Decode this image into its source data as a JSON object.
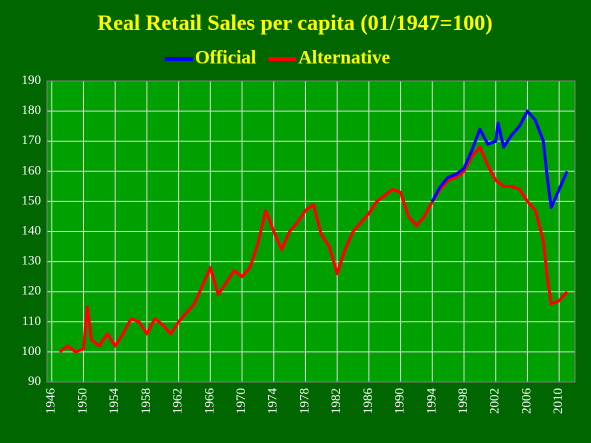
{
  "chart_data": {
    "type": "line",
    "title": "Real Retail Sales per capita (01/1947=100)",
    "series": [
      {
        "name": "Official",
        "color": "#0000ff",
        "x": [
          1994,
          1995,
          1996,
          1997,
          1998,
          1999,
          2000,
          2001,
          2002,
          2002.3,
          2003,
          2004,
          2005,
          2006,
          2007,
          2008,
          2008.5,
          2009,
          2010,
          2011
        ],
        "values": [
          150,
          155,
          158,
          159,
          161,
          167,
          174,
          169,
          170,
          176,
          168,
          172,
          175,
          180,
          177,
          170,
          158,
          148,
          154,
          160
        ]
      },
      {
        "name": "Alternative",
        "color": "#ff0000",
        "x": [
          1947,
          1948,
          1949,
          1950,
          1950.5,
          1951,
          1952,
          1953,
          1954,
          1955,
          1956,
          1957,
          1958,
          1959,
          1960,
          1961,
          1962,
          1963,
          1964,
          1965,
          1966,
          1967,
          1968,
          1969,
          1970,
          1971,
          1972,
          1973,
          1974,
          1975,
          1976,
          1977,
          1978,
          1979,
          1980,
          1981,
          1982,
          1983,
          1984,
          1985,
          1986,
          1987,
          1988,
          1989,
          1990,
          1991,
          1992,
          1993,
          1994,
          1995,
          1996,
          1997,
          1998,
          1999,
          2000,
          2001,
          2002,
          2003,
          2004,
          2005,
          2006,
          2007,
          2008,
          2008.5,
          2009,
          2010,
          2011
        ],
        "values": [
          100,
          102,
          100,
          101,
          115,
          104,
          102,
          106,
          102,
          106,
          111,
          110,
          106,
          111,
          109,
          106,
          110,
          113,
          116,
          122,
          128,
          119,
          123,
          127,
          125,
          128,
          136,
          147,
          140,
          134,
          140,
          143,
          147,
          149,
          139,
          135,
          126,
          134,
          140,
          143,
          146,
          150,
          152,
          154,
          153,
          145,
          142,
          145,
          150,
          154,
          157,
          158,
          160,
          165,
          168,
          162,
          157,
          155,
          155,
          154,
          150,
          147,
          137,
          125,
          116,
          117,
          120
        ]
      }
    ],
    "xlim": [
      1945.4,
      2012
    ],
    "xticks": [
      1946,
      1950,
      1954,
      1958,
      1962,
      1966,
      1970,
      1974,
      1978,
      1982,
      1986,
      1990,
      1994,
      1998,
      2002,
      2006,
      2010
    ],
    "ylim": [
      90,
      190
    ],
    "yticks": [
      90,
      100,
      110,
      120,
      130,
      140,
      150,
      160,
      170,
      180,
      190
    ],
    "grid": true
  }
}
